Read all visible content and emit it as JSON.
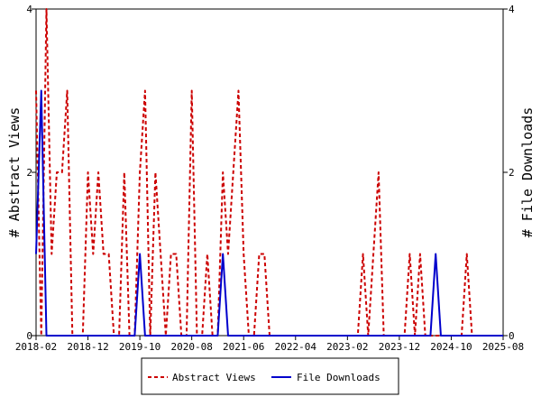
{
  "chart_data": {
    "type": "line",
    "title": "",
    "y_left_label": "# Abstract Views",
    "y_right_label": "# File Downloads",
    "y_left_range": [
      0,
      4
    ],
    "y_right_range": [
      0,
      4
    ],
    "y_left_ticks": [
      "0",
      "2",
      "4"
    ],
    "y_right_ticks": [
      "0",
      "2",
      "4"
    ],
    "x_range": [
      "2018-02",
      "2025-08"
    ],
    "x_ticks": [
      "2018-02",
      "2018-12",
      "2019-10",
      "2020-08",
      "2021-06",
      "2022-04",
      "2023-02",
      "2023-12",
      "2024-10",
      "2025-08"
    ],
    "legend_position": "bottom",
    "grid": false,
    "series": [
      {
        "name": "Abstract Views",
        "color": "#cc0000",
        "style": "dashed",
        "axis": "left",
        "points": [
          [
            "2018-02",
            3
          ],
          [
            "2018-03",
            0
          ],
          [
            "2018-04",
            4
          ],
          [
            "2018-05",
            1
          ],
          [
            "2018-06",
            2
          ],
          [
            "2018-07",
            2
          ],
          [
            "2018-08",
            3
          ],
          [
            "2018-09",
            0
          ],
          [
            "2018-10",
            0
          ],
          [
            "2018-11",
            0
          ],
          [
            "2018-12",
            2
          ],
          [
            "2019-01",
            1
          ],
          [
            "2019-02",
            2
          ],
          [
            "2019-03",
            1
          ],
          [
            "2019-04",
            1
          ],
          [
            "2019-05",
            0
          ],
          [
            "2019-06",
            0
          ],
          [
            "2019-07",
            2
          ],
          [
            "2019-08",
            0
          ],
          [
            "2019-09",
            0
          ],
          [
            "2019-10",
            2
          ],
          [
            "2019-11",
            3
          ],
          [
            "2019-12",
            0
          ],
          [
            "2020-01",
            2
          ],
          [
            "2020-02",
            1
          ],
          [
            "2020-03",
            0
          ],
          [
            "2020-04",
            1
          ],
          [
            "2020-05",
            1
          ],
          [
            "2020-06",
            0
          ],
          [
            "2020-07",
            0
          ],
          [
            "2020-08",
            3
          ],
          [
            "2020-09",
            0
          ],
          [
            "2020-10",
            0
          ],
          [
            "2020-11",
            1
          ],
          [
            "2020-12",
            0
          ],
          [
            "2021-01",
            0
          ],
          [
            "2021-02",
            2
          ],
          [
            "2021-03",
            1
          ],
          [
            "2021-04",
            2
          ],
          [
            "2021-05",
            3
          ],
          [
            "2021-06",
            1
          ],
          [
            "2021-07",
            0
          ],
          [
            "2021-08",
            0
          ],
          [
            "2021-09",
            1
          ],
          [
            "2021-10",
            1
          ],
          [
            "2021-11",
            0
          ],
          [
            "2021-12",
            0
          ],
          [
            "2022-01",
            0
          ],
          [
            "2022-02",
            0
          ],
          [
            "2022-03",
            0
          ],
          [
            "2022-04",
            0
          ],
          [
            "2022-05",
            0
          ],
          [
            "2022-06",
            0
          ],
          [
            "2022-07",
            0
          ],
          [
            "2022-08",
            0
          ],
          [
            "2022-09",
            0
          ],
          [
            "2022-10",
            0
          ],
          [
            "2022-11",
            0
          ],
          [
            "2022-12",
            0
          ],
          [
            "2023-01",
            0
          ],
          [
            "2023-02",
            0
          ],
          [
            "2023-03",
            0
          ],
          [
            "2023-04",
            0
          ],
          [
            "2023-05",
            1
          ],
          [
            "2023-06",
            0
          ],
          [
            "2023-07",
            1
          ],
          [
            "2023-08",
            2
          ],
          [
            "2023-09",
            0
          ],
          [
            "2023-10",
            0
          ],
          [
            "2023-11",
            0
          ],
          [
            "2023-12",
            0
          ],
          [
            "2024-01",
            0
          ],
          [
            "2024-02",
            1
          ],
          [
            "2024-03",
            0
          ],
          [
            "2024-04",
            1
          ],
          [
            "2024-05",
            0
          ],
          [
            "2024-06",
            0
          ],
          [
            "2024-07",
            0
          ],
          [
            "2024-08",
            0
          ],
          [
            "2024-09",
            0
          ],
          [
            "2024-10",
            0
          ],
          [
            "2024-11",
            0
          ],
          [
            "2024-12",
            0
          ],
          [
            "2025-01",
            1
          ],
          [
            "2025-02",
            0
          ],
          [
            "2025-03",
            0
          ],
          [
            "2025-04",
            0
          ],
          [
            "2025-05",
            0
          ],
          [
            "2025-06",
            0
          ],
          [
            "2025-07",
            0
          ],
          [
            "2025-08",
            0
          ]
        ]
      },
      {
        "name": "File Downloads",
        "color": "#0000cc",
        "style": "solid",
        "axis": "right",
        "points": [
          [
            "2018-02",
            1
          ],
          [
            "2018-03",
            3
          ],
          [
            "2018-04",
            0
          ],
          [
            "2018-05",
            0
          ],
          [
            "2018-06",
            0
          ],
          [
            "2018-07",
            0
          ],
          [
            "2018-08",
            0
          ],
          [
            "2018-09",
            0
          ],
          [
            "2018-10",
            0
          ],
          [
            "2018-11",
            0
          ],
          [
            "2018-12",
            0
          ],
          [
            "2019-01",
            0
          ],
          [
            "2019-02",
            0
          ],
          [
            "2019-03",
            0
          ],
          [
            "2019-04",
            0
          ],
          [
            "2019-05",
            0
          ],
          [
            "2019-06",
            0
          ],
          [
            "2019-07",
            0
          ],
          [
            "2019-08",
            0
          ],
          [
            "2019-09",
            0
          ],
          [
            "2019-10",
            1
          ],
          [
            "2019-11",
            0
          ],
          [
            "2019-12",
            0
          ],
          [
            "2020-01",
            0
          ],
          [
            "2020-02",
            0
          ],
          [
            "2020-03",
            0
          ],
          [
            "2020-04",
            0
          ],
          [
            "2020-05",
            0
          ],
          [
            "2020-06",
            0
          ],
          [
            "2020-07",
            0
          ],
          [
            "2020-08",
            0
          ],
          [
            "2020-09",
            0
          ],
          [
            "2020-10",
            0
          ],
          [
            "2020-11",
            0
          ],
          [
            "2020-12",
            0
          ],
          [
            "2021-01",
            0
          ],
          [
            "2021-02",
            1
          ],
          [
            "2021-03",
            0
          ],
          [
            "2021-04",
            0
          ],
          [
            "2021-05",
            0
          ],
          [
            "2021-06",
            0
          ],
          [
            "2021-07",
            0
          ],
          [
            "2021-08",
            0
          ],
          [
            "2021-09",
            0
          ],
          [
            "2021-10",
            0
          ],
          [
            "2021-11",
            0
          ],
          [
            "2021-12",
            0
          ],
          [
            "2022-01",
            0
          ],
          [
            "2022-02",
            0
          ],
          [
            "2022-03",
            0
          ],
          [
            "2022-04",
            0
          ],
          [
            "2022-05",
            0
          ],
          [
            "2022-06",
            0
          ],
          [
            "2022-07",
            0
          ],
          [
            "2022-08",
            0
          ],
          [
            "2022-09",
            0
          ],
          [
            "2022-10",
            0
          ],
          [
            "2022-11",
            0
          ],
          [
            "2022-12",
            0
          ],
          [
            "2023-01",
            0
          ],
          [
            "2023-02",
            0
          ],
          [
            "2023-03",
            0
          ],
          [
            "2023-04",
            0
          ],
          [
            "2023-05",
            0
          ],
          [
            "2023-06",
            0
          ],
          [
            "2023-07",
            0
          ],
          [
            "2023-08",
            0
          ],
          [
            "2023-09",
            0
          ],
          [
            "2023-10",
            0
          ],
          [
            "2023-11",
            0
          ],
          [
            "2023-12",
            0
          ],
          [
            "2024-01",
            0
          ],
          [
            "2024-02",
            0
          ],
          [
            "2024-03",
            0
          ],
          [
            "2024-04",
            0
          ],
          [
            "2024-05",
            0
          ],
          [
            "2024-06",
            0
          ],
          [
            "2024-07",
            1
          ],
          [
            "2024-08",
            0
          ],
          [
            "2024-09",
            0
          ],
          [
            "2024-10",
            0
          ],
          [
            "2024-11",
            0
          ],
          [
            "2024-12",
            0
          ],
          [
            "2025-01",
            0
          ],
          [
            "2025-02",
            0
          ],
          [
            "2025-03",
            0
          ],
          [
            "2025-04",
            0
          ],
          [
            "2025-05",
            0
          ],
          [
            "2025-06",
            0
          ],
          [
            "2025-07",
            0
          ],
          [
            "2025-08",
            0
          ]
        ]
      }
    ]
  }
}
